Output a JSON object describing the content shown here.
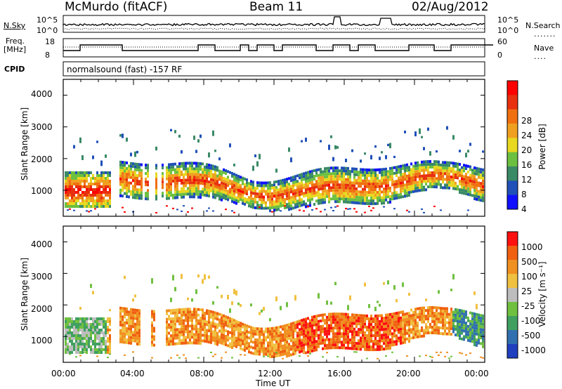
{
  "header": {
    "station": "McMurdo (fitACF)",
    "beam": "Beam 11",
    "date": "02/Aug/2012"
  },
  "top_panels": {
    "nsky_label": "N.Sky",
    "nsky_ticks": [
      "10^5",
      "10^0"
    ],
    "nsearch_label": "N.Search",
    "nsearch_ticks": [
      "10^5",
      "10^0"
    ],
    "freq_label_1": "Freq.",
    "freq_label_2": "[MHz]",
    "freq_ticks": [
      "18",
      "8"
    ],
    "nave_label": "Nave",
    "nave_ticks": [
      "60",
      "0"
    ],
    "cpid_label": "CPID",
    "cpid_text": "normalsound (fast) -157 RF"
  },
  "colors": {
    "power_scale": [
      "#1010ff",
      "#2050b8",
      "#3a8a66",
      "#6cc040",
      "#e8d820",
      "#f0a020",
      "#f07010",
      "#e83010",
      "#ff0000"
    ],
    "velocity_scale": [
      "#2040c0",
      "#3070b0",
      "#40a060",
      "#70c040",
      "#bdbdbd",
      "#f0c040",
      "#f09020",
      "#f06010",
      "#ff1010"
    ]
  },
  "chart_data": [
    {
      "type": "heatmap",
      "panel": "power",
      "ylabel": "Slant Range [km]",
      "yticks": [
        "4000",
        "3000",
        "2000",
        "1000"
      ],
      "ylim": [
        180,
        4500
      ],
      "xticks": [
        "00:00",
        "04:00",
        "08:00",
        "12:00",
        "16:00",
        "20:00",
        "00:00"
      ],
      "colorbar_label": "Power [dB]",
      "colorbar_ticks": [
        "28",
        "24",
        "20",
        "16",
        "12",
        "8",
        "4"
      ]
    },
    {
      "type": "heatmap",
      "panel": "velocity",
      "ylabel": "Slant Range [km]",
      "yticks": [
        "4000",
        "3000",
        "2000",
        "1000"
      ],
      "ylim": [
        180,
        4500
      ],
      "xticks": [
        "00:00",
        "04:00",
        "08:00",
        "12:00",
        "16:00",
        "20:00",
        "00:00"
      ],
      "xlabel": "Time UT",
      "colorbar_label": "Velocity [m s⁻¹]",
      "colorbar_ticks": [
        "1000",
        "500",
        "100",
        "25",
        "-25",
        "-100",
        "-500",
        "-1000"
      ]
    }
  ]
}
